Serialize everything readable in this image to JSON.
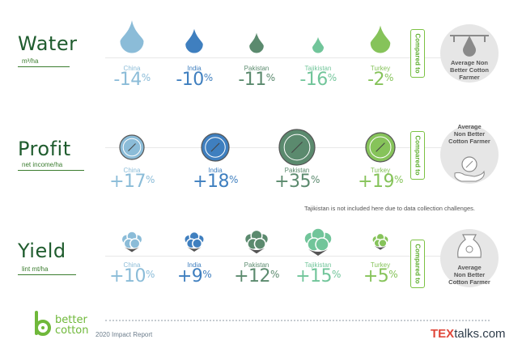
{
  "colors": {
    "china": "#8bbcd8",
    "india": "#3f7fbf",
    "pakistan": "#5b8a6e",
    "tajikistan": "#71c59a",
    "turkey": "#86c35a",
    "title": "#1f5c2e",
    "accent": "#6fb83a"
  },
  "compared_label": "Compared to",
  "sections": {
    "water": {
      "title": "Water",
      "unit": "m³/ha",
      "avg_label": [
        "Average Non",
        "Better Cotton",
        "Farmer"
      ]
    },
    "profit": {
      "title": "Profit",
      "unit": "net income/ha",
      "avg_label": [
        "Average",
        "Non Better",
        "Cotton Farmer"
      ]
    },
    "yield": {
      "title": "Yield",
      "unit": "lint mt/ha",
      "avg_label": [
        "Average",
        "Non Better",
        "Cotton Farmer"
      ]
    }
  },
  "note": "Tajikistan is not included here due to data collection challenges.",
  "footer": {
    "brand_line1": "better",
    "brand_line2": "cotton",
    "report": "2020 Impact Report",
    "tex_a": "TEX",
    "tex_b": "talks.com"
  },
  "chart_data": [
    {
      "type": "table",
      "title": "Water",
      "unit": "m³/ha",
      "categories": [
        "China",
        "India",
        "Pakistan",
        "Tajikistan",
        "Turkey"
      ],
      "values": [
        -14,
        -10,
        -11,
        -16,
        -2
      ],
      "labels": [
        "-14%",
        "-10%",
        "-11%",
        "-16%",
        "-2%"
      ]
    },
    {
      "type": "table",
      "title": "Profit",
      "unit": "net income/ha",
      "categories": [
        "China",
        "India",
        "Pakistan",
        "Turkey"
      ],
      "values": [
        17,
        18,
        35,
        19
      ],
      "labels": [
        "+17%",
        "+18%",
        "+35%",
        "+19%"
      ]
    },
    {
      "type": "table",
      "title": "Yield",
      "unit": "lint mt/ha",
      "categories": [
        "China",
        "India",
        "Pakistan",
        "Tajikistan",
        "Turkey"
      ],
      "values": [
        10,
        9,
        12,
        15,
        5
      ],
      "labels": [
        "+10%",
        "+9%",
        "+12%",
        "+15%",
        "+5%"
      ]
    }
  ]
}
